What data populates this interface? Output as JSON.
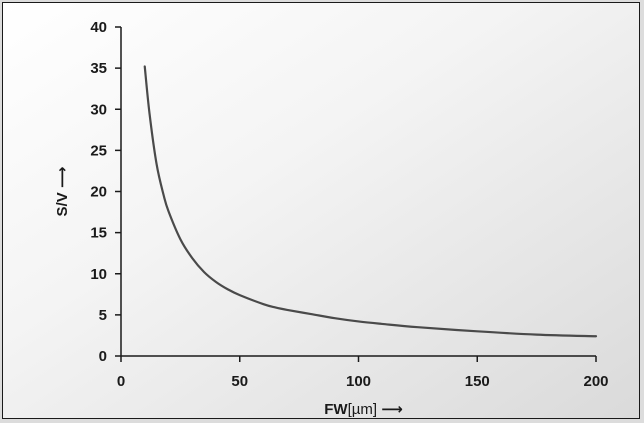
{
  "chart_data": {
    "type": "line",
    "title": "",
    "xlabel": "FW",
    "xlabel_unit": "[µm]",
    "ylabel": "S/V",
    "xlim": [
      0,
      200
    ],
    "ylim": [
      0,
      40
    ],
    "x_ticks": [
      0,
      50,
      100,
      150,
      200
    ],
    "y_ticks": [
      0,
      5,
      10,
      15,
      20,
      25,
      30,
      35,
      40
    ],
    "grid": false,
    "legend": "none",
    "series": [
      {
        "x": [
          10,
          12,
          15,
          18,
          20,
          25,
          30,
          35,
          40,
          45,
          50,
          60,
          65,
          70,
          80,
          90,
          100,
          110,
          125,
          150,
          175,
          200
        ],
        "y": [
          35.2,
          29.5,
          23.3,
          19.5,
          17.6,
          14.2,
          11.9,
          10.2,
          9.0,
          8.1,
          7.4,
          6.3,
          5.9,
          5.6,
          5.1,
          4.6,
          4.2,
          3.9,
          3.5,
          3.0,
          2.6,
          2.4
        ]
      }
    ],
    "colors": {
      "line": "#4a4a4a",
      "axis": "#1a1a1a"
    }
  }
}
